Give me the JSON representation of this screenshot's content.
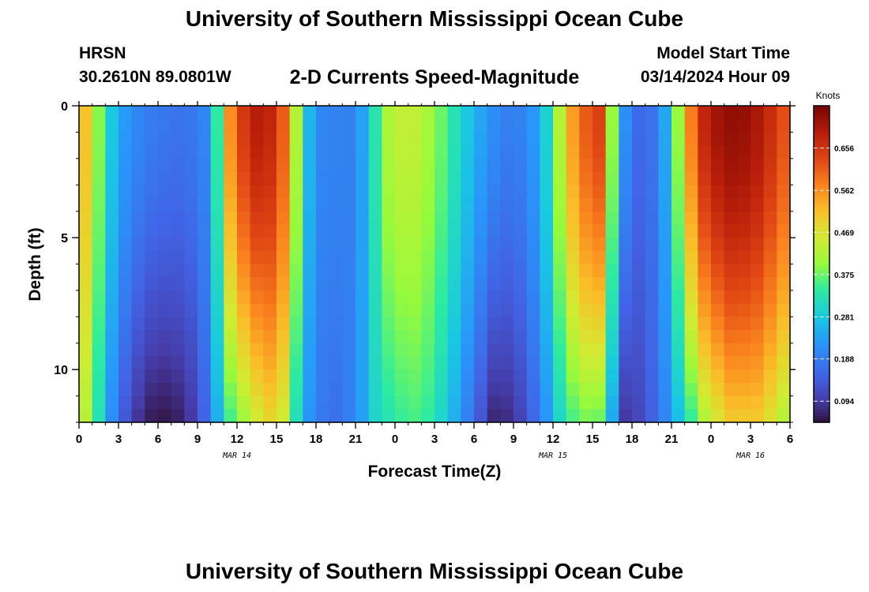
{
  "header": {
    "title": "University of Southern Mississippi Ocean Cube",
    "station": "HRSN",
    "coordinates": "30.2610N  89.0801W",
    "subtitle": "2-D Currents Speed-Magnitude",
    "model_start_label": "Model Start Time",
    "model_start_value": "03/14/2024 Hour 09"
  },
  "footer": {
    "title": "University of Southern Mississippi Ocean Cube"
  },
  "chart_data": {
    "type": "heatmap",
    "title": "2-D Currents Speed-Magnitude",
    "xlabel": "Forecast Time(Z)",
    "ylabel": "Depth (ft)",
    "x_range_hours": [
      0,
      54
    ],
    "y_range_ft": [
      0,
      12
    ],
    "y_reversed": true,
    "x_tick_labels": [
      "0",
      "3",
      "6",
      "9",
      "12",
      "15",
      "18",
      "21",
      "0",
      "3",
      "6",
      "9",
      "12",
      "15",
      "18",
      "21",
      "0",
      "3",
      "6"
    ],
    "y_tick_labels": [
      "0",
      "5",
      "10"
    ],
    "date_labels": [
      {
        "label": "MAR 14",
        "hour": 12
      },
      {
        "label": "MAR 15",
        "hour": 36
      },
      {
        "label": "MAR 16",
        "hour": 51
      }
    ],
    "colorbar": {
      "unit": "Knots",
      "min": 0.047,
      "max": 0.75,
      "ticks": [
        "0.094",
        "0.188",
        "0.281",
        "0.375",
        "0.469",
        "0.562",
        "0.656"
      ]
    },
    "surface_speed_profile_knots": [
      {
        "hour": 0,
        "value": 0.56
      },
      {
        "hour": 1,
        "value": 0.46
      },
      {
        "hour": 2,
        "value": 0.32
      },
      {
        "hour": 3,
        "value": 0.24
      },
      {
        "hour": 5,
        "value": 0.19
      },
      {
        "hour": 8,
        "value": 0.17
      },
      {
        "hour": 9.5,
        "value": 0.2
      },
      {
        "hour": 10,
        "value": 0.28
      },
      {
        "hour": 10.5,
        "value": 0.34
      },
      {
        "hour": 11,
        "value": 0.5
      },
      {
        "hour": 12,
        "value": 0.63
      },
      {
        "hour": 13.5,
        "value": 0.69
      },
      {
        "hour": 15,
        "value": 0.67
      },
      {
        "hour": 16,
        "value": 0.55
      },
      {
        "hour": 16.6,
        "value": 0.4
      },
      {
        "hour": 17.3,
        "value": 0.27
      },
      {
        "hour": 18.5,
        "value": 0.2
      },
      {
        "hour": 21,
        "value": 0.19
      },
      {
        "hour": 22.2,
        "value": 0.3
      },
      {
        "hour": 23.5,
        "value": 0.42
      },
      {
        "hour": 25,
        "value": 0.45
      },
      {
        "hour": 27,
        "value": 0.4
      },
      {
        "hour": 29,
        "value": 0.3
      },
      {
        "hour": 31,
        "value": 0.22
      },
      {
        "hour": 33,
        "value": 0.18
      },
      {
        "hour": 35,
        "value": 0.24
      },
      {
        "hour": 36,
        "value": 0.35
      },
      {
        "hour": 37,
        "value": 0.5
      },
      {
        "hour": 38,
        "value": 0.6
      },
      {
        "hour": 39.5,
        "value": 0.64
      },
      {
        "hour": 40.5,
        "value": 0.4
      },
      {
        "hour": 41,
        "value": 0.24
      },
      {
        "hour": 42.5,
        "value": 0.16
      },
      {
        "hour": 44,
        "value": 0.18
      },
      {
        "hour": 45,
        "value": 0.3
      },
      {
        "hour": 46,
        "value": 0.5
      },
      {
        "hour": 47,
        "value": 0.66
      },
      {
        "hour": 49,
        "value": 0.73
      },
      {
        "hour": 51,
        "value": 0.72
      },
      {
        "hour": 53,
        "value": 0.65
      },
      {
        "hour": 54,
        "value": 0.6
      }
    ],
    "bottom_speed_profile_knots": [
      {
        "hour": 0,
        "value": 0.47
      },
      {
        "hour": 1,
        "value": 0.38
      },
      {
        "hour": 2,
        "value": 0.26
      },
      {
        "hour": 3,
        "value": 0.16
      },
      {
        "hour": 5,
        "value": 0.06
      },
      {
        "hour": 7,
        "value": 0.05
      },
      {
        "hour": 8.5,
        "value": 0.09
      },
      {
        "hour": 9.5,
        "value": 0.15
      },
      {
        "hour": 10.5,
        "value": 0.25
      },
      {
        "hour": 11.5,
        "value": 0.35
      },
      {
        "hour": 13,
        "value": 0.43
      },
      {
        "hour": 15,
        "value": 0.5
      },
      {
        "hour": 16,
        "value": 0.4
      },
      {
        "hour": 16.6,
        "value": 0.3
      },
      {
        "hour": 17.5,
        "value": 0.22
      },
      {
        "hour": 19,
        "value": 0.16
      },
      {
        "hour": 21,
        "value": 0.2
      },
      {
        "hour": 22.5,
        "value": 0.3
      },
      {
        "hour": 24,
        "value": 0.34
      },
      {
        "hour": 26,
        "value": 0.36
      },
      {
        "hour": 28,
        "value": 0.28
      },
      {
        "hour": 30,
        "value": 0.16
      },
      {
        "hour": 31.5,
        "value": 0.07
      },
      {
        "hour": 33,
        "value": 0.08
      },
      {
        "hour": 35,
        "value": 0.18
      },
      {
        "hour": 36.5,
        "value": 0.3
      },
      {
        "hour": 38,
        "value": 0.38
      },
      {
        "hour": 39.5,
        "value": 0.37
      },
      {
        "hour": 40.5,
        "value": 0.24
      },
      {
        "hour": 41.5,
        "value": 0.09
      },
      {
        "hour": 43,
        "value": 0.12
      },
      {
        "hour": 44.5,
        "value": 0.2
      },
      {
        "hour": 46,
        "value": 0.3
      },
      {
        "hour": 47.5,
        "value": 0.42
      },
      {
        "hour": 49.5,
        "value": 0.5
      },
      {
        "hour": 51.5,
        "value": 0.5
      },
      {
        "hour": 53,
        "value": 0.45
      },
      {
        "hour": 54,
        "value": 0.4
      }
    ]
  }
}
